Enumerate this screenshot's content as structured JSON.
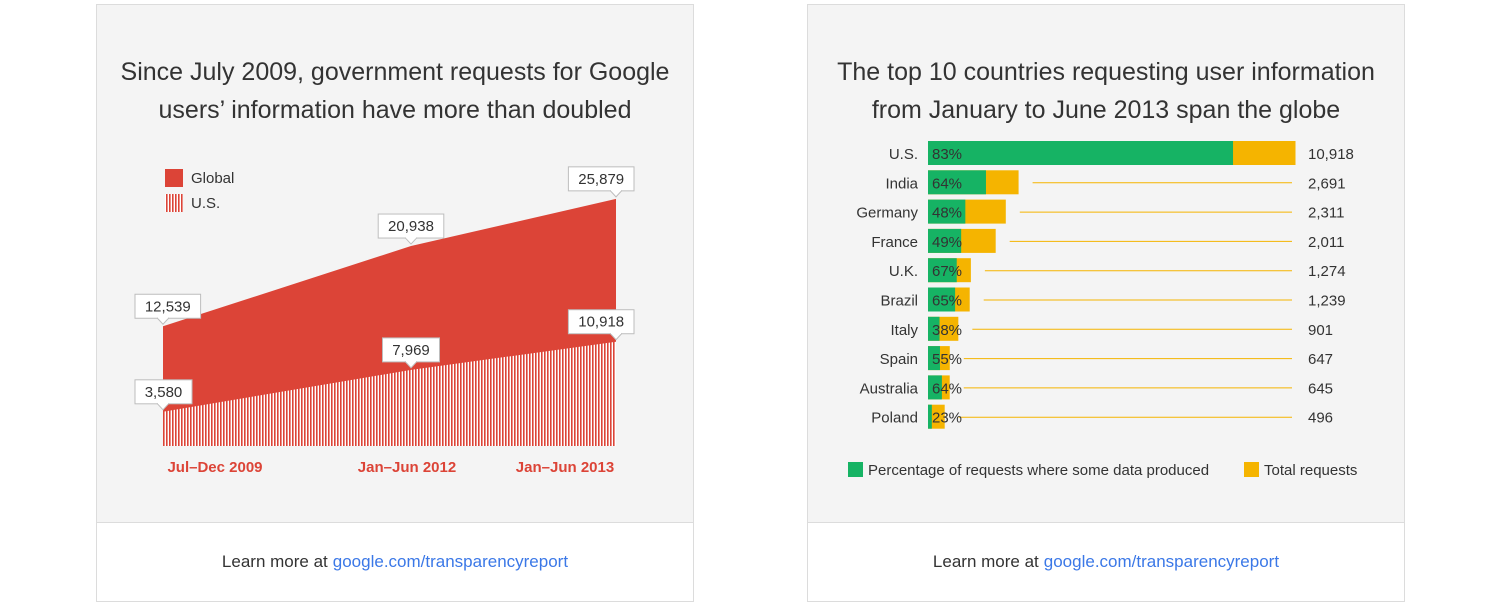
{
  "left": {
    "title_line1": "Since July 2009, government requests for Google",
    "title_line2": "users’ information have more than doubled",
    "footer_text": "Learn more at",
    "footer_link": "google.com/transparencyreport"
  },
  "right": {
    "title_line1": "The top 10 countries requesting user information",
    "title_line2": "from January to June 2013 span the globe",
    "footer_text": "Learn more at",
    "footer_link": "google.com/transparencyreport"
  },
  "colors": {
    "global_red": "#dc4437",
    "us_stripe": "#dc4437",
    "green": "#16b364",
    "yellow": "#f5b400"
  },
  "chart_data": [
    {
      "type": "area",
      "categories": [
        "Jul–Dec 2009",
        "Jan–Jun 2012",
        "Jan–Jun 2013"
      ],
      "series": [
        {
          "name": "Global",
          "values": [
            12539,
            20938,
            25879
          ],
          "labels": [
            "12,539",
            "20,938",
            "25,879"
          ]
        },
        {
          "name": "U.S.",
          "values": [
            3580,
            7969,
            10918
          ],
          "labels": [
            "3,580",
            "7,969",
            "10,918"
          ]
        }
      ],
      "legend": [
        "Global",
        "U.S."
      ],
      "legend_position": "top-left"
    },
    {
      "type": "bar",
      "categories": [
        "U.S.",
        "India",
        "Germany",
        "France",
        "U.K.",
        "Brazil",
        "Italy",
        "Spain",
        "Australia",
        "Poland"
      ],
      "totals": [
        10918,
        2691,
        2311,
        2011,
        1274,
        1239,
        901,
        647,
        645,
        496
      ],
      "total_labels": [
        "10,918",
        "2,691",
        "2,311",
        "2,011",
        "1,274",
        "1,239",
        "901",
        "647",
        "645",
        "496"
      ],
      "percent_produced": [
        83,
        64,
        48,
        49,
        67,
        65,
        38,
        55,
        64,
        23
      ],
      "percent_labels": [
        "83%",
        "64%",
        "48%",
        "49%",
        "67%",
        "65%",
        "38%",
        "55%",
        "64%",
        "23%"
      ],
      "legend": [
        "Percentage of requests where some data produced",
        "Total requests"
      ],
      "legend_position": "bottom"
    }
  ]
}
